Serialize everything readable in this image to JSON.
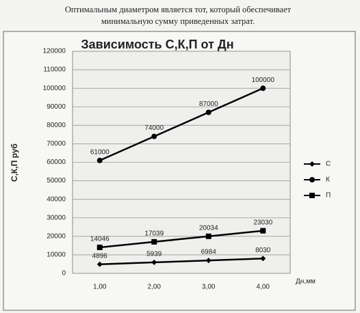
{
  "caption": "Оптимальным диаметром является тот, который обеспечивает минимальную сумму приведенных затрат.",
  "chart_data": {
    "type": "line",
    "title": "Зависимость С,К,П от Дн",
    "y_label": "С,К,П руб",
    "x_label": "Дн,мм",
    "categories": [
      "1,00",
      "2,00",
      "3,00",
      "4,00"
    ],
    "series": [
      {
        "name": "С",
        "color": "#000000",
        "marker": "diamond",
        "values": [
          4896,
          5939,
          6984,
          8030
        ]
      },
      {
        "name": "К",
        "color": "#000000",
        "marker": "circle",
        "values": [
          61000,
          74000,
          87000,
          100000
        ]
      },
      {
        "name": "П",
        "color": "#000000",
        "marker": "square",
        "values": [
          14046,
          17039,
          20034,
          23030
        ]
      }
    ],
    "ylim": [
      0,
      120000
    ],
    "yticks": [
      0,
      10000,
      20000,
      30000,
      40000,
      50000,
      60000,
      70000,
      80000,
      90000,
      100000,
      110000,
      120000
    ],
    "grid": true,
    "legend": "right"
  }
}
